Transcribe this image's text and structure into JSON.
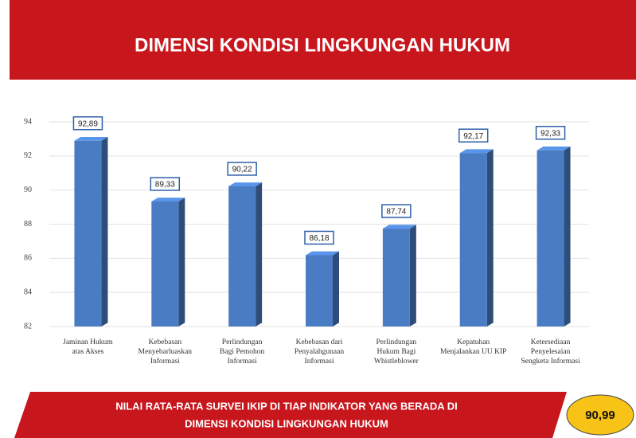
{
  "title": "DIMENSI KONDISI LINGKUNGAN HUKUM",
  "footer": {
    "text_lines": [
      "NILAI RATA-RATA SURVEI IKIP DI TIAP INDIKATOR YANG BERADA DI",
      "DIMENSI KONDISI LINGKUNGAN HUKUM"
    ],
    "score": "90,99"
  },
  "chart_data": {
    "type": "bar",
    "categories": [
      "Jaminan Hukum\natas Akses",
      "Kebebasan\nMenyebarluaskan\nInformasi",
      "Perlindungan\nBagi Pemohon\nInformasi",
      "Kebebasan dari\nPenyalahgunaan\nInformasi",
      "Perlindungan\nHukum Bagi\nWhistleblower",
      "Kepatuhan\nMenjalankan UU KIP",
      "Ketersediaan\nPenyelesaian\nSengketa Informasi"
    ],
    "values": [
      92.89,
      89.33,
      90.22,
      86.18,
      87.74,
      92.17,
      92.33
    ],
    "value_labels": [
      "92,89",
      "89,33",
      "90,22",
      "86,18",
      "87,74",
      "92,17",
      "92,33"
    ],
    "color": "#4a7cc4",
    "ylim": [
      82,
      94
    ],
    "yticks": [
      82,
      84,
      86,
      88,
      90,
      92,
      94
    ],
    "grid": true
  }
}
